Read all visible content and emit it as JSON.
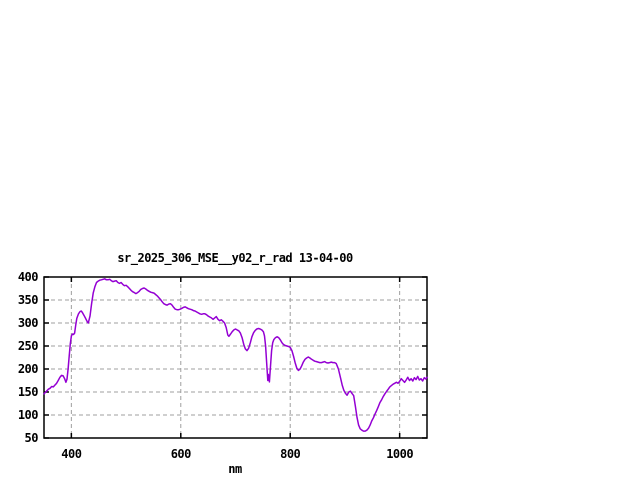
{
  "chart_data": {
    "type": "line",
    "title": "sr_2025_306_MSE__y02_r_rad 13-04-00",
    "xlabel": "nm",
    "ylabel": "",
    "xlim": [
      350,
      1050
    ],
    "ylim": [
      50,
      400
    ],
    "xticks": [
      400,
      600,
      800,
      1000
    ],
    "yticks": [
      50,
      100,
      150,
      200,
      250,
      300,
      350,
      400
    ],
    "grid": true,
    "legend": "none",
    "colors": {
      "line": "#9400d3",
      "grid": "#9f9f9f",
      "axis": "#000000",
      "background": "#ffffff",
      "text": "#000000"
    },
    "series": [
      {
        "points": [
          [
            350,
            146
          ],
          [
            354,
            151
          ],
          [
            358,
            156
          ],
          [
            361,
            158
          ],
          [
            364,
            162
          ],
          [
            367,
            161
          ],
          [
            370,
            165
          ],
          [
            373,
            169
          ],
          [
            376,
            175
          ],
          [
            379,
            182
          ],
          [
            382,
            186
          ],
          [
            385,
            185
          ],
          [
            388,
            178
          ],
          [
            390,
            171
          ],
          [
            392,
            178
          ],
          [
            394,
            200
          ],
          [
            396,
            228
          ],
          [
            398,
            255
          ],
          [
            400,
            272
          ],
          [
            402,
            276
          ],
          [
            404,
            275
          ],
          [
            406,
            278
          ],
          [
            408,
            295
          ],
          [
            410,
            310
          ],
          [
            413,
            320
          ],
          [
            416,
            325
          ],
          [
            418,
            326
          ],
          [
            420,
            323
          ],
          [
            423,
            317
          ],
          [
            426,
            310
          ],
          [
            429,
            303
          ],
          [
            431,
            300
          ],
          [
            434,
            315
          ],
          [
            437,
            342
          ],
          [
            440,
            365
          ],
          [
            443,
            379
          ],
          [
            446,
            388
          ],
          [
            449,
            391
          ],
          [
            452,
            393
          ],
          [
            455,
            394
          ],
          [
            458,
            395
          ],
          [
            461,
            396
          ],
          [
            464,
            394
          ],
          [
            467,
            394
          ],
          [
            470,
            395
          ],
          [
            473,
            392
          ],
          [
            476,
            390
          ],
          [
            479,
            391
          ],
          [
            482,
            392
          ],
          [
            485,
            388
          ],
          [
            488,
            386
          ],
          [
            491,
            388
          ],
          [
            494,
            384
          ],
          [
            497,
            381
          ],
          [
            500,
            382
          ],
          [
            503,
            379
          ],
          [
            506,
            375
          ],
          [
            509,
            371
          ],
          [
            512,
            368
          ],
          [
            515,
            366
          ],
          [
            518,
            364
          ],
          [
            521,
            366
          ],
          [
            524,
            369
          ],
          [
            527,
            373
          ],
          [
            530,
            375
          ],
          [
            533,
            376
          ],
          [
            536,
            374
          ],
          [
            539,
            371
          ],
          [
            542,
            369
          ],
          [
            545,
            367
          ],
          [
            548,
            366
          ],
          [
            551,
            365
          ],
          [
            554,
            362
          ],
          [
            557,
            359
          ],
          [
            560,
            355
          ],
          [
            563,
            351
          ],
          [
            566,
            346
          ],
          [
            569,
            342
          ],
          [
            572,
            340
          ],
          [
            575,
            339
          ],
          [
            578,
            341
          ],
          [
            581,
            342
          ],
          [
            584,
            339
          ],
          [
            587,
            334
          ],
          [
            590,
            330
          ],
          [
            593,
            329
          ],
          [
            596,
            329
          ],
          [
            599,
            330
          ],
          [
            602,
            332
          ],
          [
            605,
            334
          ],
          [
            608,
            335
          ],
          [
            611,
            333
          ],
          [
            614,
            331
          ],
          [
            617,
            330
          ],
          [
            620,
            329
          ],
          [
            623,
            327
          ],
          [
            626,
            326
          ],
          [
            629,
            324
          ],
          [
            632,
            322
          ],
          [
            635,
            320
          ],
          [
            638,
            319
          ],
          [
            641,
            320
          ],
          [
            644,
            320
          ],
          [
            647,
            318
          ],
          [
            650,
            315
          ],
          [
            653,
            313
          ],
          [
            656,
            311
          ],
          [
            659,
            308
          ],
          [
            662,
            311
          ],
          [
            665,
            314
          ],
          [
            668,
            308
          ],
          [
            671,
            305
          ],
          [
            674,
            307
          ],
          [
            677,
            304
          ],
          [
            680,
            300
          ],
          [
            683,
            290
          ],
          [
            686,
            274
          ],
          [
            688,
            271
          ],
          [
            691,
            276
          ],
          [
            694,
            281
          ],
          [
            697,
            285
          ],
          [
            700,
            287
          ],
          [
            703,
            285
          ],
          [
            706,
            283
          ],
          [
            709,
            278
          ],
          [
            712,
            268
          ],
          [
            715,
            254
          ],
          [
            718,
            244
          ],
          [
            721,
            240
          ],
          [
            724,
            245
          ],
          [
            727,
            257
          ],
          [
            730,
            270
          ],
          [
            733,
            279
          ],
          [
            736,
            284
          ],
          [
            739,
            287
          ],
          [
            742,
            288
          ],
          [
            745,
            287
          ],
          [
            748,
            285
          ],
          [
            751,
            281
          ],
          [
            753,
            272
          ],
          [
            755,
            250
          ],
          [
            757,
            212
          ],
          [
            759,
            175
          ],
          [
            760,
            188
          ],
          [
            762,
            172
          ],
          [
            764,
            206
          ],
          [
            766,
            240
          ],
          [
            768,
            257
          ],
          [
            770,
            264
          ],
          [
            773,
            268
          ],
          [
            776,
            270
          ],
          [
            779,
            268
          ],
          [
            782,
            263
          ],
          [
            785,
            257
          ],
          [
            788,
            253
          ],
          [
            791,
            251
          ],
          [
            794,
            250
          ],
          [
            797,
            249
          ],
          [
            800,
            247
          ],
          [
            803,
            240
          ],
          [
            806,
            228
          ],
          [
            809,
            214
          ],
          [
            812,
            202
          ],
          [
            815,
            197
          ],
          [
            818,
            200
          ],
          [
            821,
            207
          ],
          [
            824,
            215
          ],
          [
            827,
            221
          ],
          [
            830,
            224
          ],
          [
            833,
            226
          ],
          [
            836,
            224
          ],
          [
            839,
            221
          ],
          [
            842,
            219
          ],
          [
            845,
            217
          ],
          [
            848,
            216
          ],
          [
            851,
            215
          ],
          [
            854,
            214
          ],
          [
            857,
            214
          ],
          [
            860,
            215
          ],
          [
            863,
            216
          ],
          [
            866,
            214
          ],
          [
            869,
            213
          ],
          [
            872,
            214
          ],
          [
            875,
            215
          ],
          [
            878,
            214
          ],
          [
            881,
            214
          ],
          [
            884,
            212
          ],
          [
            886,
            206
          ],
          [
            888,
            200
          ],
          [
            890,
            190
          ],
          [
            892,
            180
          ],
          [
            895,
            165
          ],
          [
            898,
            154
          ],
          [
            901,
            147
          ],
          [
            904,
            143
          ],
          [
            907,
            150
          ],
          [
            910,
            152
          ],
          [
            913,
            147
          ],
          [
            916,
            142
          ],
          [
            919,
            120
          ],
          [
            922,
            95
          ],
          [
            925,
            78
          ],
          [
            928,
            70
          ],
          [
            931,
            67
          ],
          [
            934,
            65
          ],
          [
            937,
            65
          ],
          [
            940,
            67
          ],
          [
            943,
            71
          ],
          [
            946,
            78
          ],
          [
            949,
            87
          ],
          [
            952,
            94
          ],
          [
            955,
            102
          ],
          [
            958,
            110
          ],
          [
            961,
            118
          ],
          [
            964,
            127
          ],
          [
            967,
            133
          ],
          [
            970,
            140
          ],
          [
            973,
            146
          ],
          [
            976,
            151
          ],
          [
            979,
            156
          ],
          [
            982,
            161
          ],
          [
            985,
            164
          ],
          [
            988,
            167
          ],
          [
            991,
            169
          ],
          [
            994,
            171
          ],
          [
            997,
            169
          ],
          [
            1000,
            173
          ],
          [
            1003,
            179
          ],
          [
            1006,
            175
          ],
          [
            1009,
            171
          ],
          [
            1012,
            176
          ],
          [
            1015,
            182
          ],
          [
            1018,
            175
          ],
          [
            1021,
            179
          ],
          [
            1024,
            174
          ],
          [
            1027,
            181
          ],
          [
            1030,
            177
          ],
          [
            1033,
            184
          ],
          [
            1036,
            176
          ],
          [
            1039,
            179
          ],
          [
            1042,
            174
          ],
          [
            1045,
            181
          ],
          [
            1048,
            178
          ],
          [
            1050,
            182
          ]
        ]
      }
    ]
  }
}
